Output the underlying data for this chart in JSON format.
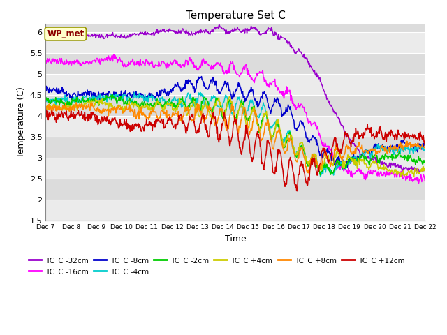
{
  "title": "Temperature Set C",
  "xlabel": "Time",
  "ylabel": "Temperature (C)",
  "ylim": [
    1.5,
    6.2
  ],
  "yticks": [
    1.5,
    2.0,
    2.5,
    3.0,
    3.5,
    4.0,
    4.5,
    5.0,
    5.5,
    6.0
  ],
  "xtick_labels": [
    "Dec 7",
    "Dec 8",
    "Dec 9",
    "Dec 10",
    "Dec 11",
    "Dec 12",
    "Dec 13",
    "Dec 14",
    "Dec 15",
    "Dec 16",
    "Dec 17",
    "Dec 18",
    "Dec 19",
    "Dec 20",
    "Dec 21",
    "Dec 22"
  ],
  "annotation_text": "WP_met",
  "annotation_color": "#8B0000",
  "annotation_bg": "#FFFFCC",
  "annotation_border": "#999900",
  "colors": {
    "TC_C -32cm": "#9900CC",
    "TC_C -16cm": "#FF00FF",
    "TC_C -8cm": "#0000CC",
    "TC_C -4cm": "#00CCCC",
    "TC_C -2cm": "#00CC00",
    "TC_C +4cm": "#CCCC00",
    "TC_C +8cm": "#FF8800",
    "TC_C +12cm": "#CC0000"
  },
  "plot_bg": "#DCDCDC",
  "grid_color": "white",
  "n_points": 720
}
